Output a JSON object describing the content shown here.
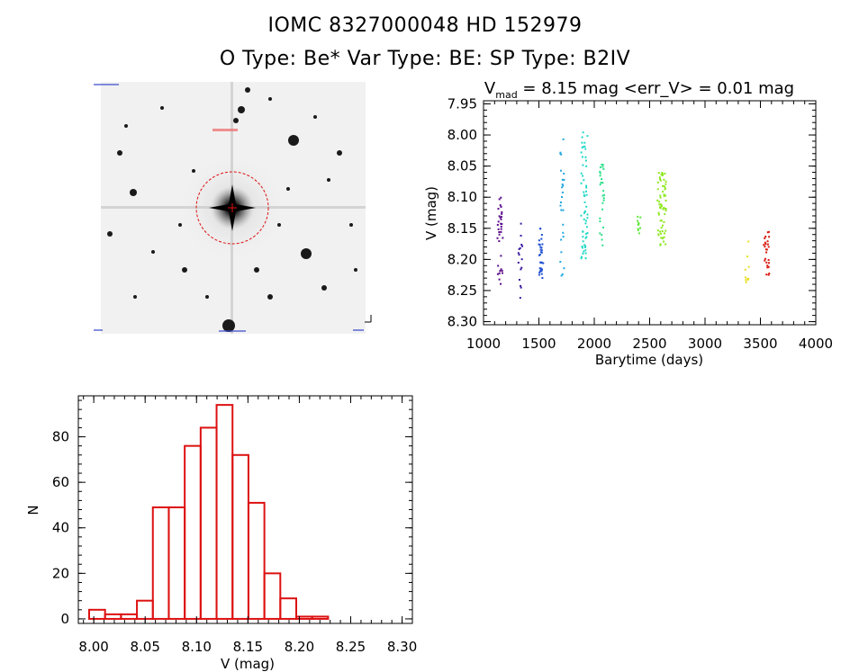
{
  "header": {
    "title_line1": "IOMC 8327000048    HD 152979",
    "title_line2": "O Type: Be*  Var Type: BE:  SP Type: B2IV"
  },
  "colors": {
    "hist_bar": "#dd1111",
    "circle": "#dd1111",
    "lc_palette": [
      "#5a0a8a",
      "#3a1aa0",
      "#1e4fd0",
      "#22a7e0",
      "#22d8c6",
      "#2ee08a",
      "#5ee83a",
      "#8ee820",
      "#e8e020",
      "#e86a10",
      "#d81a10"
    ]
  },
  "chart_data": [
    {
      "type": "scatter",
      "title": "V_mad = 8.15 mag <err_V> = 0.01 mag",
      "title_main": "V",
      "title_sub": "mad",
      "title_rest": " = 8.15 mag <err_V> = 0.01 mag",
      "xlabel": "Barytime (days)",
      "ylabel": "V (mag)",
      "xlim": [
        1000,
        4000
      ],
      "ylim": [
        8.305,
        7.945
      ],
      "y_inverted": true,
      "xticks": [
        1000,
        1500,
        2000,
        2500,
        3000,
        3500,
        4000
      ],
      "xtick_labels": [
        "1000",
        "1500",
        "2000",
        "2500",
        "3000",
        "3500",
        "4000"
      ],
      "yticks": [
        7.95,
        8.0,
        8.05,
        8.1,
        8.15,
        8.2,
        8.25,
        8.3
      ],
      "ytick_labels": [
        "7.95",
        "8.00",
        "8.05",
        "8.10",
        "8.15",
        "8.20",
        "8.25",
        "8.30"
      ],
      "clusters": [
        {
          "x": [
            1120,
            1175
          ],
          "y": [
            8.1,
            8.24
          ],
          "n": 34,
          "color": "#5a0a8a"
        },
        {
          "x": [
            1315,
            1350
          ],
          "y": [
            8.09,
            8.27
          ],
          "n": 16,
          "color": "#3a1aa0"
        },
        {
          "x": [
            1500,
            1540
          ],
          "y": [
            8.15,
            8.23
          ],
          "n": 30,
          "color": "#1e4fd0"
        },
        {
          "x": [
            1690,
            1730
          ],
          "y": [
            8.0,
            8.23
          ],
          "n": 26,
          "color": "#22a7e0"
        },
        {
          "x": [
            1880,
            1940
          ],
          "y": [
            7.995,
            8.2
          ],
          "n": 58,
          "color": "#22d8c6"
        },
        {
          "x": [
            2050,
            2090
          ],
          "y": [
            8.04,
            8.18
          ],
          "n": 26,
          "color": "#2ee08a"
        },
        {
          "x": [
            2390,
            2420
          ],
          "y": [
            8.13,
            8.16
          ],
          "n": 10,
          "color": "#5ee83a"
        },
        {
          "x": [
            2570,
            2650
          ],
          "y": [
            8.06,
            8.18
          ],
          "n": 66,
          "color": "#8ee820"
        },
        {
          "x": [
            3360,
            3400
          ],
          "y": [
            8.16,
            8.245
          ],
          "n": 10,
          "color": "#e8e020"
        },
        {
          "x": [
            3530,
            3580
          ],
          "y": [
            8.155,
            8.225
          ],
          "n": 26,
          "color": "#d81a10"
        }
      ]
    },
    {
      "type": "bar",
      "subtype": "histogram",
      "xlabel": "V (mag)",
      "ylabel": "N",
      "xlim": [
        7.985,
        8.31
      ],
      "ylim": [
        -2,
        98
      ],
      "bin_width": 0.0155,
      "bin_start": 7.9955,
      "values": [
        4,
        2,
        2,
        8,
        49,
        49,
        76,
        84,
        94,
        72,
        51,
        20,
        9,
        1,
        1
      ],
      "xticks": [
        8.0,
        8.05,
        8.1,
        8.15,
        8.2,
        8.25,
        8.3
      ],
      "xtick_labels": [
        "8.00",
        "8.05",
        "8.10",
        "8.15",
        "8.20",
        "8.25",
        "8.30"
      ],
      "yticks": [
        0,
        20,
        40,
        60,
        80
      ],
      "ytick_labels": [
        "0",
        "20",
        "40",
        "60",
        "80"
      ]
    }
  ]
}
